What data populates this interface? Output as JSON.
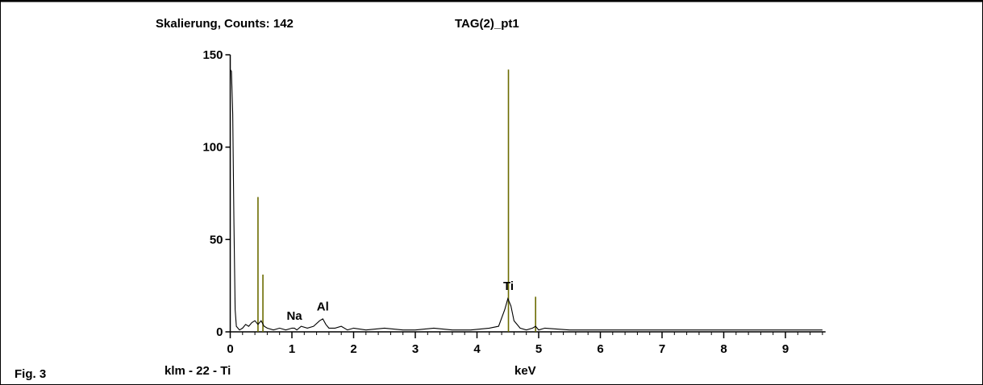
{
  "figure_label": "Fig. 3",
  "colors": {
    "spectrum": "#000000",
    "marker": "#6b6b00",
    "background": "#ffffff"
  },
  "chart_data": {
    "type": "line",
    "title": "TAG(2)_pt1",
    "subtitle": "Skalierung, Counts: 142",
    "sample_label": "klm - 22 - Ti",
    "xlabel": "keV",
    "ylabel": "",
    "xlim": [
      -0.15,
      9.65
    ],
    "ylim": [
      0,
      150
    ],
    "xticks": [
      0,
      1,
      2,
      3,
      4,
      5,
      6,
      7,
      8,
      9
    ],
    "yticks": [
      0,
      50,
      100,
      150
    ],
    "grid": false,
    "series": [
      {
        "x": [
          0.0,
          0.02,
          0.04,
          0.06,
          0.08,
          0.1,
          0.15,
          0.2,
          0.25,
          0.3,
          0.35,
          0.4,
          0.45,
          0.5,
          0.55,
          0.6,
          0.7,
          0.8,
          0.9,
          1.0,
          1.04,
          1.08,
          1.15,
          1.25,
          1.35,
          1.45,
          1.5,
          1.55,
          1.6,
          1.7,
          1.8,
          1.9,
          2.0,
          2.2,
          2.5,
          2.8,
          3.0,
          3.3,
          3.6,
          3.9,
          4.2,
          4.35,
          4.45,
          4.5,
          4.55,
          4.6,
          4.7,
          4.8,
          4.9,
          4.95,
          5.0,
          5.1,
          5.5,
          6.0,
          6.5,
          7.0,
          7.5,
          8.0,
          8.5,
          9.0,
          9.5,
          9.6
        ],
        "y": [
          142,
          141,
          118,
          59,
          12,
          3,
          1,
          2,
          4,
          3,
          5,
          6,
          4,
          6,
          3,
          2,
          1,
          2,
          1,
          2,
          2,
          1,
          3,
          2,
          3,
          6,
          7,
          4,
          2,
          2,
          3,
          1,
          2,
          1,
          2,
          1,
          1,
          2,
          1,
          1,
          2,
          3,
          12,
          18,
          14,
          6,
          2,
          1,
          2,
          3,
          1,
          2,
          1,
          1,
          1,
          1,
          1,
          1,
          1,
          1,
          1,
          1
        ]
      }
    ],
    "markers": [
      {
        "x": 0.45,
        "height": 73
      },
      {
        "x": 0.53,
        "height": 31
      },
      {
        "x": 4.51,
        "height": 142
      },
      {
        "x": 4.95,
        "height": 19
      }
    ],
    "annotations": [
      {
        "text": "Na",
        "x": 1.04,
        "y": 4
      },
      {
        "text": "Al",
        "x": 1.5,
        "y": 9
      },
      {
        "text": "Ti",
        "x": 4.51,
        "y": 20
      }
    ]
  }
}
